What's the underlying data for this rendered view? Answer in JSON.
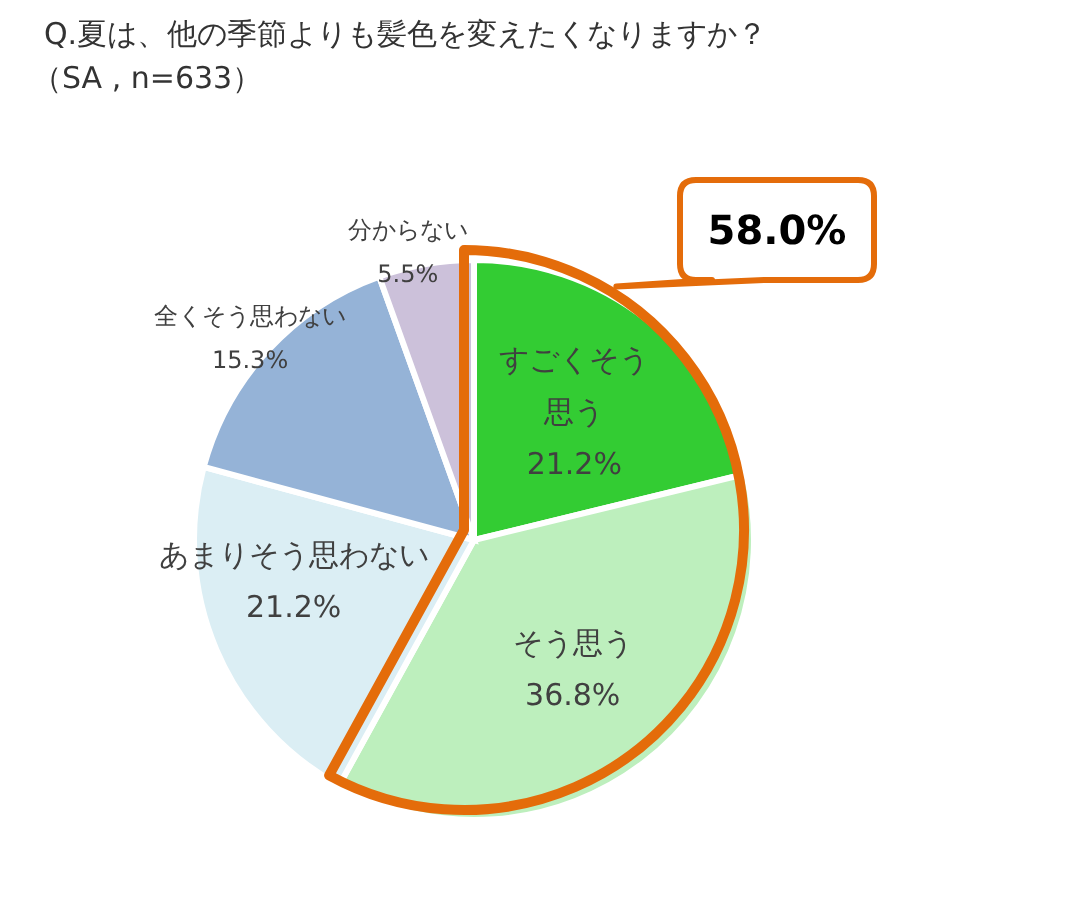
{
  "chart_data": {
    "type": "pie",
    "title": "Q.夏は、他の季節よりも髪色を変えたくなりますか？",
    "subtitle": "（SA , n=633）",
    "categories": [
      "すごくそう思う",
      "そう思う",
      "あまりそう思わない",
      "全くそう思わない",
      "分からない"
    ],
    "values": [
      21.2,
      36.8,
      21.2,
      15.3,
      5.5
    ],
    "colors": [
      "#33cc33",
      "#bdefbd",
      "#dbeef4",
      "#95b3d7",
      "#ccc1da"
    ],
    "value_labels": [
      "21.2%",
      "36.8%",
      "21.2%",
      "15.3%",
      "5.5%"
    ],
    "annotations": [
      "58.0%"
    ]
  }
}
